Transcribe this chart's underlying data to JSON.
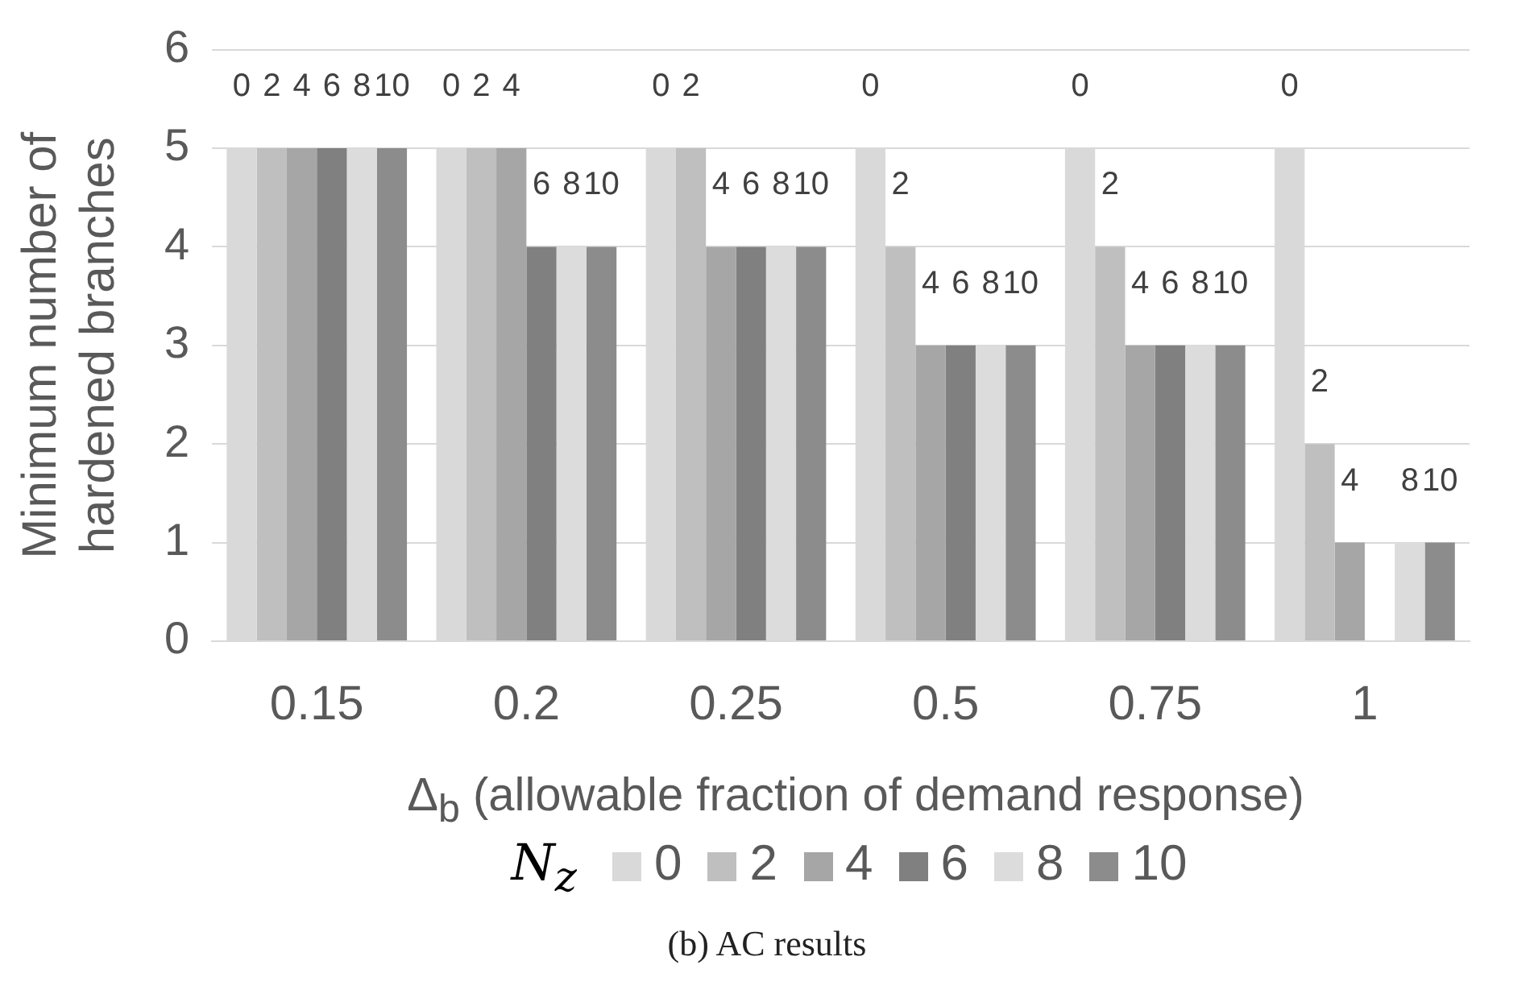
{
  "chart_data": {
    "type": "bar",
    "ylabel": "Minimum number of hardened branches",
    "xlabel": "Δ$_{b}$ (allowable fraction of demand response)",
    "legend_title": "N$_{z}$",
    "annotations": [
      "(b) AC results"
    ],
    "categories": [
      "0.15",
      "0.2",
      "0.25",
      "0.5",
      "0.75",
      "1"
    ],
    "series": [
      {
        "name": "0",
        "color": "#d9d9d9",
        "values": [
          5,
          5,
          5,
          5,
          5,
          5
        ]
      },
      {
        "name": "2",
        "color": "#bfbfbf",
        "values": [
          5,
          5,
          5,
          4,
          4,
          2
        ]
      },
      {
        "name": "4",
        "color": "#a6a6a6",
        "values": [
          5,
          5,
          4,
          3,
          3,
          1
        ]
      },
      {
        "name": "6",
        "color": "#808080",
        "values": [
          5,
          4,
          4,
          3,
          3,
          null
        ]
      },
      {
        "name": "8",
        "color": "#dcdcdc",
        "values": [
          5,
          4,
          4,
          3,
          3,
          1
        ]
      },
      {
        "name": "10",
        "color": "#8c8c8c",
        "values": [
          5,
          4,
          4,
          3,
          3,
          1
        ]
      }
    ],
    "ylim": [
      0,
      6
    ],
    "yticks": [
      0,
      1,
      2,
      3,
      4,
      5,
      6
    ],
    "grid": "y",
    "legend": "bottom"
  }
}
